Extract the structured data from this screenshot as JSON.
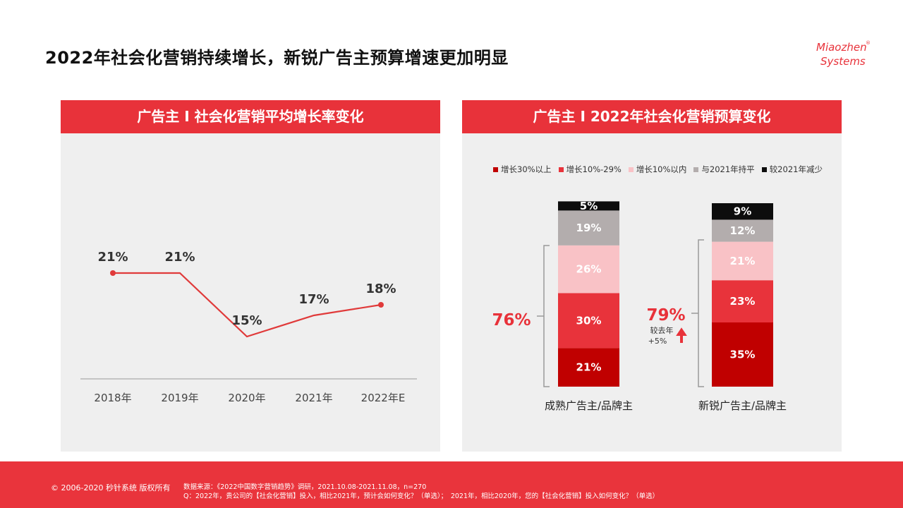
{
  "title": "2022年社会化营销持续增长，新锐广告主预算增速更加明显",
  "logo": {
    "line1": "Miaozhen",
    "line2": "Systems",
    "mark": "®"
  },
  "left_panel": {
    "header": "广告主 I 社会化营销平均增长率变化"
  },
  "right_panel": {
    "header": "广告主 I 2022年社会化营销预算变化",
    "legend": [
      {
        "label": "增长30%以上",
        "color": "#c00000"
      },
      {
        "label": "增长10%-29%",
        "color": "#e8333b"
      },
      {
        "label": "增长10%以内",
        "color": "#f9c2c6"
      },
      {
        "label": "与2021年持平",
        "color": "#b3adad"
      },
      {
        "label": "较2021年减少",
        "color": "#0d0d0d"
      }
    ],
    "brace_left_total": "76%",
    "brace_right_total": "79%",
    "yoy_label_line1": "较去年",
    "yoy_label_line2": "+5%"
  },
  "footer": {
    "copyright": "© 2006-2020 秒针系统 版权所有",
    "source_line1": "数据来源：《2022中国数字营销趋势》调研，2021.10.08-2021.11.08，n=270",
    "source_line2": "Q：2022年，贵公司的【社会化营销】投入，相比2021年，预计会如何变化？（单选）；　2021年，相比2020年，您的【社会化营销】投入如何变化？（单选）"
  },
  "colors": {
    "brand_red": "#e8323a",
    "line_red": "#e03a3a",
    "panel_bg": "#efefef"
  },
  "chart_data": [
    {
      "type": "line",
      "categories": [
        "2018年",
        "2019年",
        "2020年",
        "2021年",
        "2022年E"
      ],
      "values": [
        21,
        21,
        15,
        17,
        18
      ],
      "value_labels": [
        "21%",
        "21%",
        "15%",
        "17%",
        "18%"
      ],
      "title": "广告主 I 社会化营销平均增长率变化",
      "xlabel": "",
      "ylabel": "",
      "ylim": [
        0,
        30
      ],
      "grid": false
    },
    {
      "type": "bar",
      "stacked": true,
      "categories": [
        "成熟广告主/品牌主",
        "新锐广告主/品牌主"
      ],
      "series": [
        {
          "name": "增长30%以上",
          "values": [
            21,
            35
          ],
          "color": "#c00000"
        },
        {
          "name": "增长10%-29%",
          "values": [
            30,
            23
          ],
          "color": "#e8333b"
        },
        {
          "name": "增长10%以内",
          "values": [
            26,
            21
          ],
          "color": "#f9c2c6"
        },
        {
          "name": "与2021年持平",
          "values": [
            19,
            12
          ],
          "color": "#b3adad"
        },
        {
          "name": "较2021年减少",
          "values": [
            5,
            9
          ],
          "color": "#0d0d0d"
        }
      ],
      "title": "广告主 I 2022年社会化营销预算变化",
      "legend": "top",
      "ylim": [
        0,
        100
      ]
    }
  ]
}
